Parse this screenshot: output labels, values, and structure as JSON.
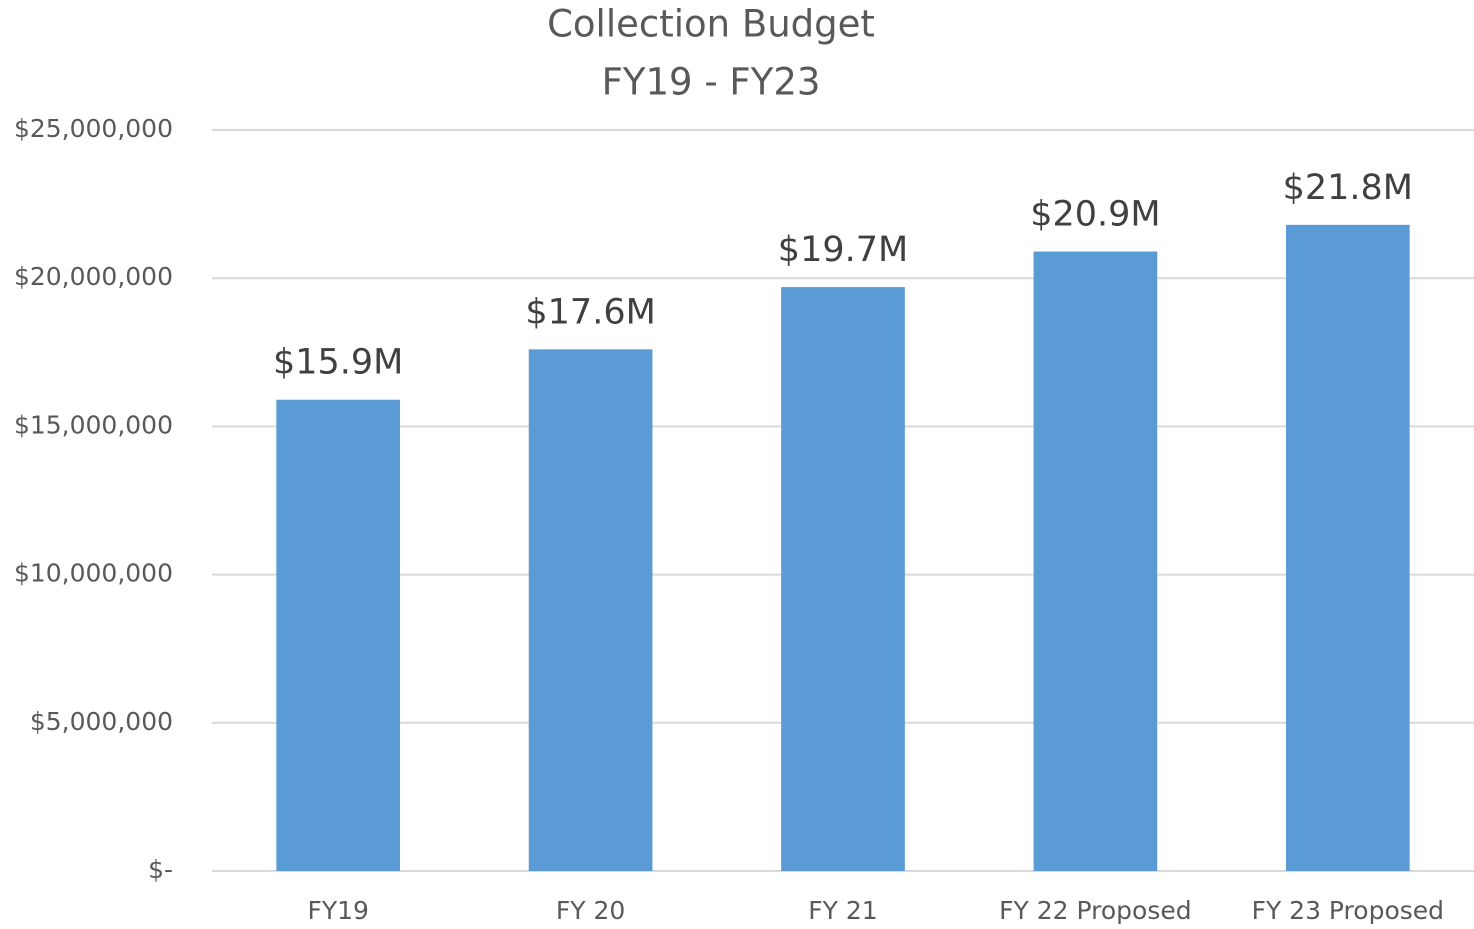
{
  "chart_data": {
    "type": "bar",
    "title": "Collection Budget",
    "subtitle": "FY19 - FY23",
    "categories": [
      "FY19",
      "FY 20",
      "FY 21",
      "FY 22 Proposed",
      "FY 23 Proposed"
    ],
    "values": [
      15900000,
      17600000,
      19700000,
      20900000,
      21800000
    ],
    "value_labels": [
      "$15.9M",
      "$17.6M",
      "$19.7M",
      "$20.9M",
      "$21.8M"
    ],
    "color": "#5b9bd5",
    "ylim": [
      0,
      25000000
    ],
    "yticks": [
      {
        "value": 0,
        "label": "$-"
      },
      {
        "value": 5000000,
        "label": "$5,000,000"
      },
      {
        "value": 10000000,
        "label": "$10,000,000"
      },
      {
        "value": 15000000,
        "label": "$15,000,000"
      },
      {
        "value": 20000000,
        "label": "$20,000,000"
      },
      {
        "value": 25000000,
        "label": "$25,000,000"
      }
    ],
    "grid": true
  }
}
